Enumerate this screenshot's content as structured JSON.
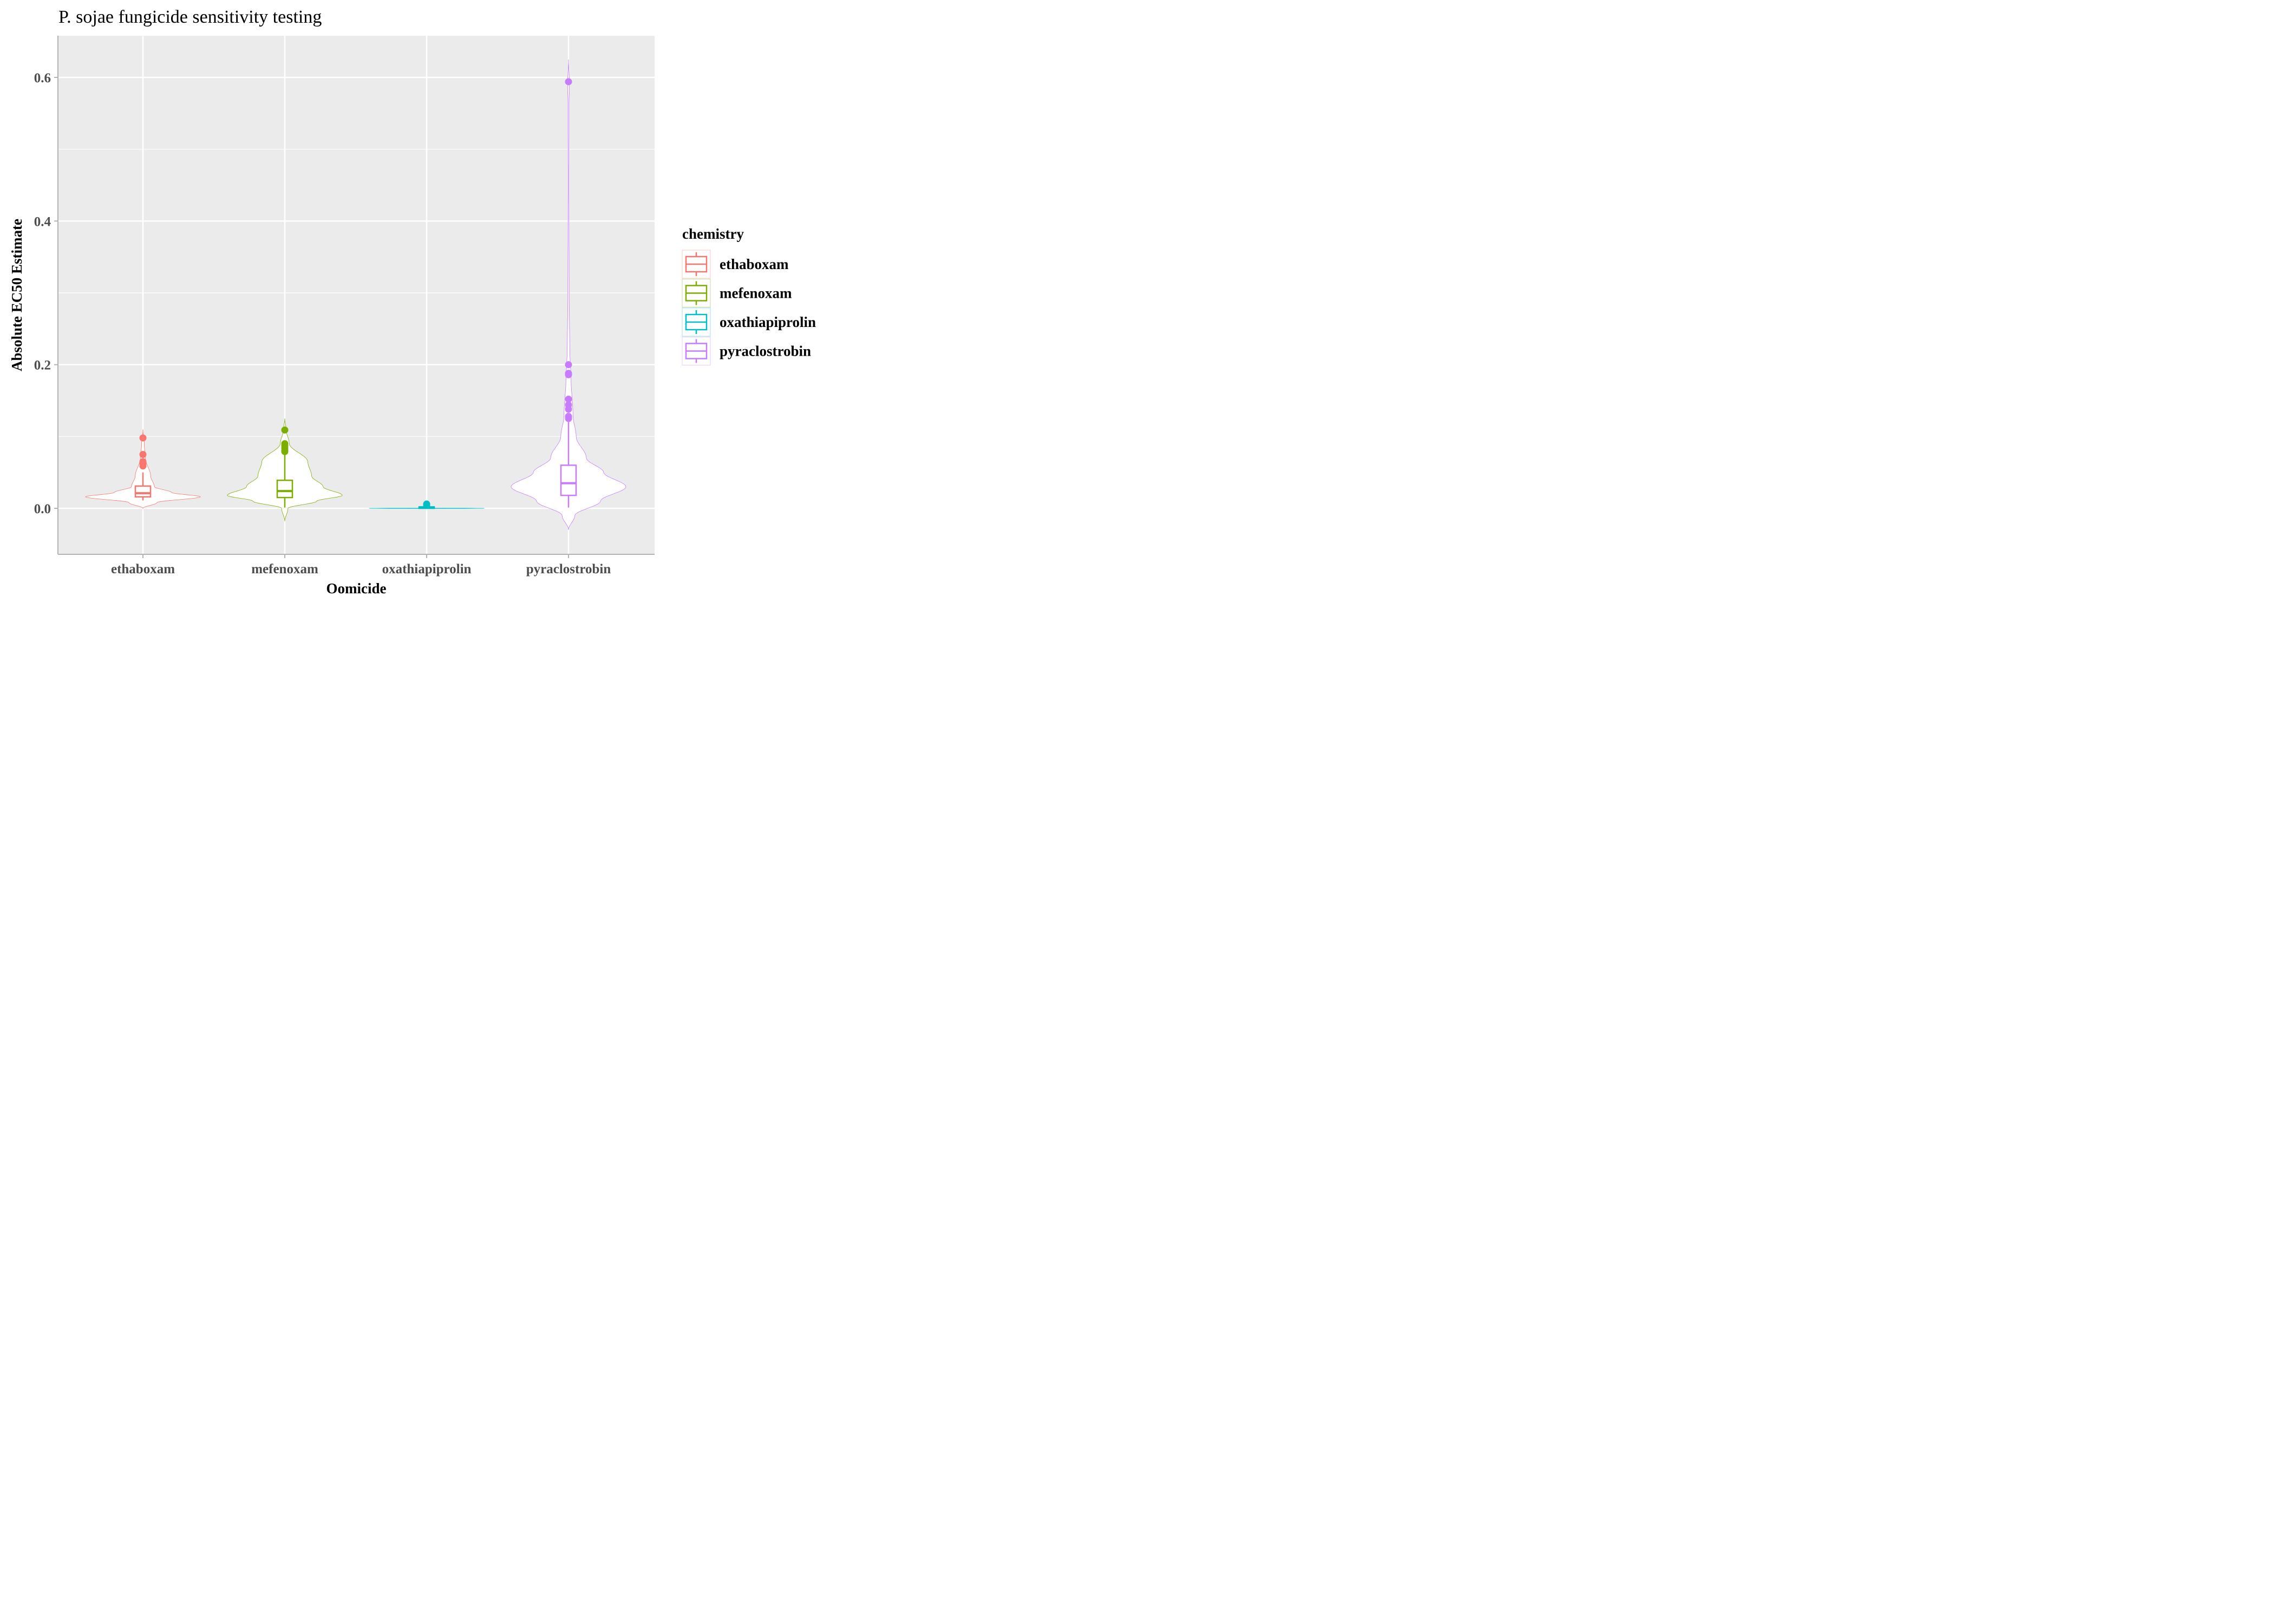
{
  "chart_data": {
    "type": "violin",
    "title": "P. sojae fungicide sensitivity testing",
    "xlabel": "Oomicide",
    "ylabel": "Absolute EC50 Estimate",
    "ylim": [
      -0.063,
      0.66
    ],
    "y_ticks": [
      0.0,
      0.2,
      0.4,
      0.6
    ],
    "y_tick_labels": [
      "0.0",
      "0.2",
      "0.4",
      "0.6"
    ],
    "categories": [
      "ethaboxam",
      "mefenoxam",
      "oxathiapiprolin",
      "pyraclostrobin"
    ],
    "grid": true,
    "legend": {
      "title": "chemistry",
      "position": "right"
    },
    "series": [
      {
        "name": "ethaboxam",
        "color": "#F8766D",
        "box": {
          "min": 0.011,
          "q1": 0.016,
          "median": 0.021,
          "q3": 0.031,
          "max": 0.05
        },
        "outliers": [
          0.098,
          0.075,
          0.065,
          0.062,
          0.059
        ],
        "violin": [
          [
            0.0,
            0.0
          ],
          [
            0.008,
            0.22
          ],
          [
            0.016,
            0.9
          ],
          [
            0.022,
            0.45
          ],
          [
            0.03,
            0.18
          ],
          [
            0.045,
            0.12
          ],
          [
            0.07,
            0.04
          ],
          [
            0.09,
            0.02
          ],
          [
            0.11,
            0.0
          ]
        ]
      },
      {
        "name": "mefenoxam",
        "color": "#7CAE00",
        "box": {
          "min": 0.001,
          "q1": 0.015,
          "median": 0.024,
          "q3": 0.039,
          "max": 0.075
        },
        "outliers": [
          0.109,
          0.09,
          0.087,
          0.084,
          0.081,
          0.079
        ],
        "violin": [
          [
            -0.018,
            0.0
          ],
          [
            0.0,
            0.05
          ],
          [
            0.01,
            0.5
          ],
          [
            0.018,
            0.9
          ],
          [
            0.03,
            0.6
          ],
          [
            0.045,
            0.42
          ],
          [
            0.065,
            0.36
          ],
          [
            0.09,
            0.07
          ],
          [
            0.11,
            0.02
          ],
          [
            0.125,
            0.0
          ]
        ]
      },
      {
        "name": "oxathiapiprolin",
        "color": "#00BFC4",
        "box": {
          "min": 0.0,
          "q1": 0.0,
          "median": 0.001,
          "q3": 0.002,
          "max": 0.003
        },
        "outliers": [
          0.006,
          0.004
        ],
        "violin": [
          [
            -0.0005,
            0.0
          ],
          [
            0.0,
            0.9
          ],
          [
            0.0005,
            0.0
          ]
        ]
      },
      {
        "name": "pyraclostrobin",
        "color": "#C77CFF",
        "box": {
          "min": 0.001,
          "q1": 0.018,
          "median": 0.035,
          "q3": 0.06,
          "max": 0.12
        },
        "outliers": [
          0.594,
          0.2,
          0.188,
          0.186,
          0.152,
          0.144,
          0.138,
          0.128,
          0.125
        ],
        "violin": [
          [
            -0.03,
            0.0
          ],
          [
            -0.01,
            0.1
          ],
          [
            0.01,
            0.5
          ],
          [
            0.03,
            0.9
          ],
          [
            0.05,
            0.55
          ],
          [
            0.07,
            0.28
          ],
          [
            0.1,
            0.12
          ],
          [
            0.13,
            0.07
          ],
          [
            0.18,
            0.04
          ],
          [
            0.22,
            0.02
          ],
          [
            0.3,
            0.01
          ],
          [
            0.45,
            0.006
          ],
          [
            0.565,
            0.008
          ],
          [
            0.59,
            0.015
          ],
          [
            0.625,
            0.0
          ]
        ]
      }
    ]
  }
}
